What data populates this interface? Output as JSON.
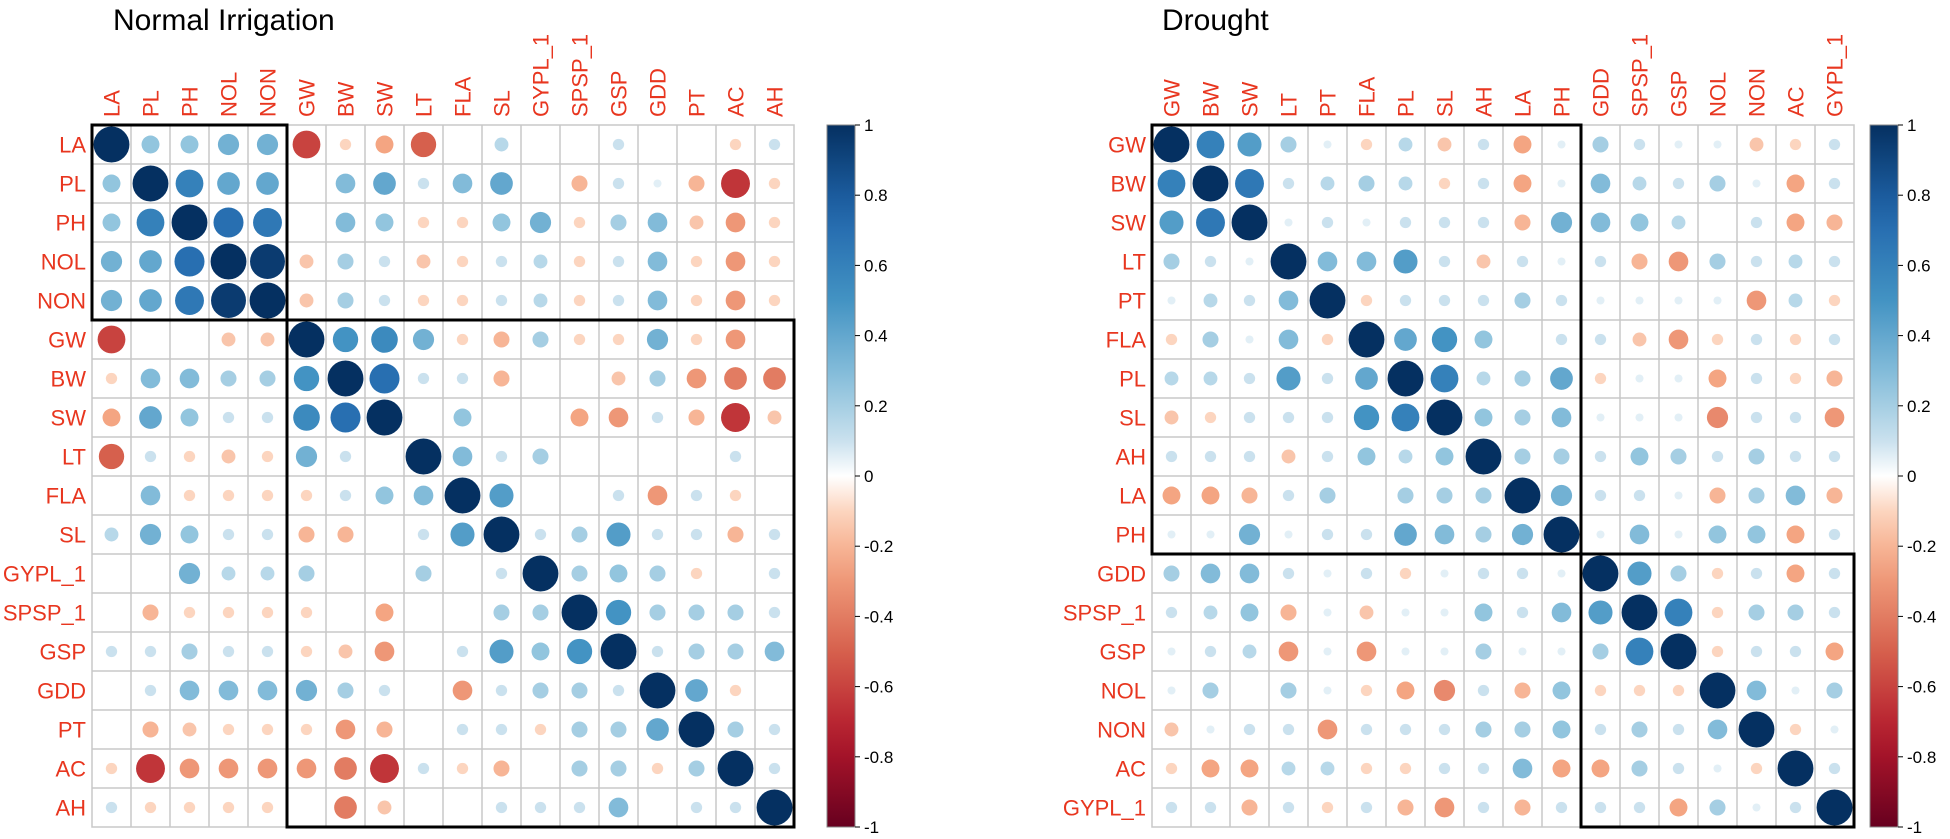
{
  "chart_data": [
    {
      "type": "heatmap",
      "title": "Normal Irrigation",
      "variables": [
        "LA",
        "PL",
        "PH",
        "NOL",
        "NON",
        "GW",
        "BW",
        "SW",
        "LT",
        "FLA",
        "SL",
        "GYPL_1",
        "SPSP_1",
        "GSP",
        "GDD",
        "PT",
        "AC",
        "AH"
      ],
      "clusters": [
        [
          "LA",
          "NON"
        ],
        [
          "GW",
          "AH"
        ]
      ],
      "matrix": [
        [
          1,
          0.25,
          0.25,
          0.35,
          0.35,
          -0.6,
          -0.1,
          -0.25,
          -0.5,
          0,
          0.15,
          0,
          0,
          0.1,
          0,
          0,
          -0.1,
          0.1
        ],
        [
          0.25,
          1,
          0.6,
          0.4,
          0.4,
          0,
          0.3,
          0.4,
          0.1,
          0.3,
          0.4,
          0,
          -0.2,
          0.1,
          0.05,
          -0.2,
          -0.65,
          -0.1
        ],
        [
          0.25,
          0.6,
          1,
          0.7,
          0.65,
          0,
          0.3,
          0.25,
          -0.1,
          -0.1,
          0.25,
          0.35,
          -0.1,
          0.2,
          0.3,
          -0.15,
          -0.3,
          -0.1
        ],
        [
          0.35,
          0.4,
          0.7,
          1,
          0.95,
          -0.15,
          0.2,
          0.1,
          -0.15,
          -0.1,
          0.1,
          0.15,
          -0.1,
          0.1,
          0.3,
          -0.1,
          -0.3,
          -0.1
        ],
        [
          0.35,
          0.4,
          0.65,
          0.95,
          1,
          -0.15,
          0.2,
          0.1,
          -0.1,
          -0.1,
          0.1,
          0.15,
          -0.1,
          0.1,
          0.3,
          -0.1,
          -0.3,
          -0.1
        ],
        [
          -0.6,
          0,
          0,
          -0.15,
          -0.15,
          1,
          0.5,
          0.55,
          0.35,
          -0.1,
          -0.2,
          0.2,
          -0.1,
          -0.1,
          0.35,
          -0.1,
          -0.3,
          0
        ],
        [
          -0.1,
          0.3,
          0.3,
          0.2,
          0.2,
          0.5,
          1,
          0.7,
          0.1,
          0.1,
          -0.2,
          0,
          0,
          -0.15,
          0.2,
          -0.3,
          -0.4,
          -0.4
        ],
        [
          -0.25,
          0.4,
          0.25,
          0.1,
          0.1,
          0.55,
          0.7,
          1,
          0,
          0.25,
          0,
          0,
          -0.25,
          -0.3,
          0.1,
          -0.2,
          -0.65,
          -0.15
        ],
        [
          -0.5,
          0.1,
          -0.1,
          -0.15,
          -0.1,
          0.35,
          0.1,
          0,
          1,
          0.3,
          0.1,
          0.2,
          0,
          0,
          0,
          0,
          0.1,
          0
        ],
        [
          0,
          0.3,
          -0.1,
          -0.1,
          -0.1,
          -0.1,
          0.1,
          0.25,
          0.3,
          1,
          0.45,
          0,
          0,
          0.1,
          -0.3,
          0.1,
          -0.1,
          0
        ],
        [
          0.15,
          0.35,
          0.25,
          0.1,
          0.1,
          -0.2,
          -0.2,
          0,
          0.1,
          0.45,
          1,
          0.1,
          0.2,
          0.45,
          0.1,
          0.1,
          -0.2,
          0.1
        ],
        [
          0,
          0,
          0.35,
          0.15,
          0.15,
          0.2,
          0,
          0,
          0.2,
          0,
          0.1,
          1,
          0.2,
          0.25,
          0.2,
          -0.1,
          0,
          0.1
        ],
        [
          0,
          -0.2,
          -0.1,
          -0.1,
          -0.1,
          -0.1,
          0,
          -0.25,
          0,
          0,
          0.2,
          0.2,
          1,
          0.5,
          0.2,
          0.2,
          0.2,
          0.1
        ],
        [
          0.1,
          0.1,
          0.2,
          0.1,
          0.1,
          -0.1,
          -0.15,
          -0.3,
          0,
          0.1,
          0.45,
          0.25,
          0.5,
          1,
          0.1,
          0.2,
          0.2,
          0.3
        ],
        [
          0,
          0.1,
          0.3,
          0.3,
          0.3,
          0.35,
          0.2,
          0.1,
          0,
          -0.3,
          0.1,
          0.2,
          0.2,
          0.1,
          1,
          0.4,
          -0.1,
          0
        ],
        [
          0,
          -0.2,
          -0.15,
          -0.1,
          -0.1,
          -0.1,
          -0.3,
          -0.2,
          0,
          0.1,
          0.1,
          -0.1,
          0.2,
          0.2,
          0.4,
          1,
          0.2,
          0.1
        ],
        [
          -0.1,
          -0.65,
          -0.3,
          -0.3,
          -0.3,
          -0.3,
          -0.4,
          -0.65,
          0.1,
          -0.1,
          -0.2,
          0,
          0.2,
          0.2,
          -0.1,
          0.2,
          1,
          0.1
        ],
        [
          0.1,
          -0.1,
          -0.1,
          -0.1,
          -0.1,
          0,
          -0.4,
          -0.15,
          0,
          0,
          0.1,
          0.1,
          0.1,
          0.3,
          0,
          0.1,
          0.1,
          1
        ]
      ],
      "colorbar_ticks": [
        "1",
        "0.8",
        "0.6",
        "0.4",
        "0.2",
        "0",
        "-0.2",
        "-0.4",
        "-0.6",
        "-0.8",
        "-1"
      ]
    },
    {
      "type": "heatmap",
      "title": "Drought",
      "variables": [
        "GW",
        "BW",
        "SW",
        "LT",
        "PT",
        "FLA",
        "PL",
        "SL",
        "AH",
        "LA",
        "PH",
        "GDD",
        "SPSP_1",
        "GSP",
        "NOL",
        "NON",
        "AC",
        "GYPL_1"
      ],
      "clusters": [
        [
          "GW",
          "PH"
        ],
        [
          "GDD",
          "GYPL_1"
        ]
      ],
      "matrix": [
        [
          1,
          0.6,
          0.45,
          0.2,
          0.05,
          -0.1,
          0.15,
          -0.15,
          0.1,
          -0.25,
          0.05,
          0.2,
          0.1,
          0.05,
          0.05,
          -0.15,
          -0.1,
          0.1
        ],
        [
          0.6,
          1,
          0.65,
          0.1,
          0.15,
          0.2,
          0.15,
          -0.1,
          0.1,
          -0.25,
          0.05,
          0.3,
          0.15,
          0.1,
          0.2,
          0.05,
          -0.25,
          0.1
        ],
        [
          0.45,
          0.65,
          1,
          0.05,
          0.1,
          0.05,
          0.1,
          0.1,
          0.1,
          -0.2,
          0.35,
          0.3,
          0.25,
          0.15,
          0,
          0.1,
          -0.25,
          -0.2
        ],
        [
          0.2,
          0.1,
          0.05,
          1,
          0.3,
          0.3,
          0.45,
          0.1,
          -0.15,
          0.1,
          0.05,
          0.1,
          -0.2,
          -0.3,
          0.2,
          0.1,
          0.15,
          0.1
        ],
        [
          0.05,
          0.15,
          0.1,
          0.3,
          1,
          -0.1,
          0.1,
          0.1,
          0.1,
          0.2,
          0.1,
          0.05,
          0.05,
          0.05,
          0.05,
          -0.3,
          0.15,
          -0.1
        ],
        [
          -0.1,
          0.2,
          0.05,
          0.3,
          -0.1,
          1,
          0.4,
          0.5,
          0.25,
          0,
          0.1,
          0.1,
          -0.15,
          -0.3,
          -0.1,
          0.1,
          -0.1,
          0.1
        ],
        [
          0.15,
          0.15,
          0.1,
          0.45,
          0.1,
          0.4,
          1,
          0.6,
          0.15,
          0.2,
          0.4,
          -0.1,
          0.05,
          0.05,
          -0.25,
          0.1,
          -0.1,
          -0.2
        ],
        [
          -0.15,
          -0.1,
          0.1,
          0.1,
          0.1,
          0.5,
          0.6,
          1,
          0.25,
          0.2,
          0.3,
          0.05,
          0.05,
          0.05,
          -0.35,
          0.1,
          0.1,
          -0.3
        ],
        [
          0.1,
          0.1,
          0.1,
          -0.15,
          0.1,
          0.25,
          0.15,
          0.25,
          1,
          0.2,
          0.2,
          0.1,
          0.25,
          0.2,
          0.1,
          0.2,
          0.1,
          0.1
        ],
        [
          -0.25,
          -0.25,
          -0.2,
          0.1,
          0.2,
          0,
          0.2,
          0.2,
          0.2,
          1,
          0.35,
          0.1,
          0.1,
          0.05,
          -0.2,
          0.2,
          0.3,
          -0.2
        ],
        [
          0.05,
          0.05,
          0.35,
          0.05,
          0.1,
          0.1,
          0.4,
          0.3,
          0.2,
          0.35,
          1,
          0.05,
          0.3,
          0.05,
          0.25,
          0.25,
          -0.25,
          0.1
        ],
        [
          0.2,
          0.3,
          0.3,
          0.1,
          0.05,
          0.1,
          -0.1,
          0.05,
          0.1,
          0.1,
          0.05,
          1,
          0.45,
          0.2,
          -0.1,
          0.1,
          -0.25,
          0.1
        ],
        [
          0.1,
          0.15,
          0.25,
          -0.2,
          0.05,
          -0.15,
          0.05,
          0.05,
          0.25,
          0.1,
          0.3,
          0.45,
          1,
          0.6,
          -0.1,
          0.2,
          0.2,
          0.1
        ],
        [
          0.05,
          0.1,
          0.15,
          -0.3,
          0.05,
          -0.3,
          0.05,
          0.05,
          0.2,
          0.05,
          0.05,
          0.2,
          0.6,
          1,
          -0.1,
          0.1,
          0.1,
          -0.25
        ],
        [
          0.05,
          0.2,
          0,
          0.2,
          0.05,
          -0.1,
          -0.25,
          -0.35,
          0.1,
          -0.2,
          0.25,
          -0.1,
          -0.1,
          -0.1,
          1,
          0.3,
          0.05,
          0.2
        ],
        [
          -0.15,
          0.05,
          0.1,
          0.1,
          -0.3,
          0.1,
          0.1,
          0.1,
          0.2,
          0.2,
          0.25,
          0.1,
          0.2,
          0.1,
          0.3,
          1,
          -0.1,
          0.05
        ],
        [
          -0.1,
          -0.25,
          -0.25,
          0.15,
          0.15,
          -0.1,
          -0.1,
          0.1,
          0.1,
          0.3,
          -0.25,
          -0.25,
          0.2,
          0.1,
          0.05,
          -0.1,
          1,
          0.1
        ],
        [
          0.1,
          0.1,
          -0.2,
          0.1,
          -0.1,
          0.1,
          -0.2,
          -0.3,
          0.1,
          -0.2,
          0.1,
          0.1,
          0.1,
          -0.25,
          0.2,
          0.05,
          0.1,
          1
        ]
      ],
      "colorbar_ticks": [
        "1",
        "0.8",
        "0.6",
        "0.4",
        "0.2",
        "0",
        "-0.2",
        "-0.4",
        "-0.6",
        "-0.8",
        "-1"
      ]
    }
  ]
}
